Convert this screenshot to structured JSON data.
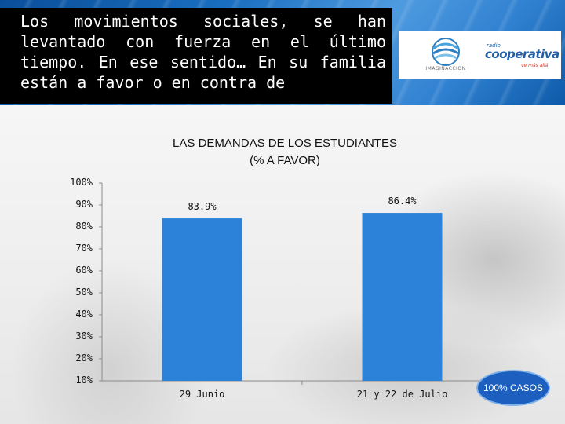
{
  "question": "Los movimientos sociales, se han levantado con fuerza en el último tiempo. En ese sentido… En su familia están a favor o en contra de",
  "logos": {
    "left_text": "IMAGINACCION",
    "right_small": "radio",
    "right_big": "cooperativa",
    "right_tag": "ve más allá"
  },
  "badge": "100% CASOS",
  "colors": {
    "bar": "#2b82d8",
    "header": "#1a6fc0",
    "badge": "#1c5fbf"
  },
  "chart_data": {
    "type": "bar",
    "title": "LAS DEMANDAS DE LOS ESTUDIANTES",
    "subtitle": "(% A FAVOR)",
    "categories": [
      "29 Junio",
      "21 y 22 de Julio"
    ],
    "values": [
      83.9,
      86.4
    ],
    "value_labels": [
      "83.9%",
      "86.4%"
    ],
    "y_ticks": [
      "10%",
      "20%",
      "30%",
      "40%",
      "50%",
      "60%",
      "70%",
      "80%",
      "90%",
      "100%"
    ],
    "ylim": [
      10,
      100
    ],
    "xlabel": "",
    "ylabel": ""
  }
}
